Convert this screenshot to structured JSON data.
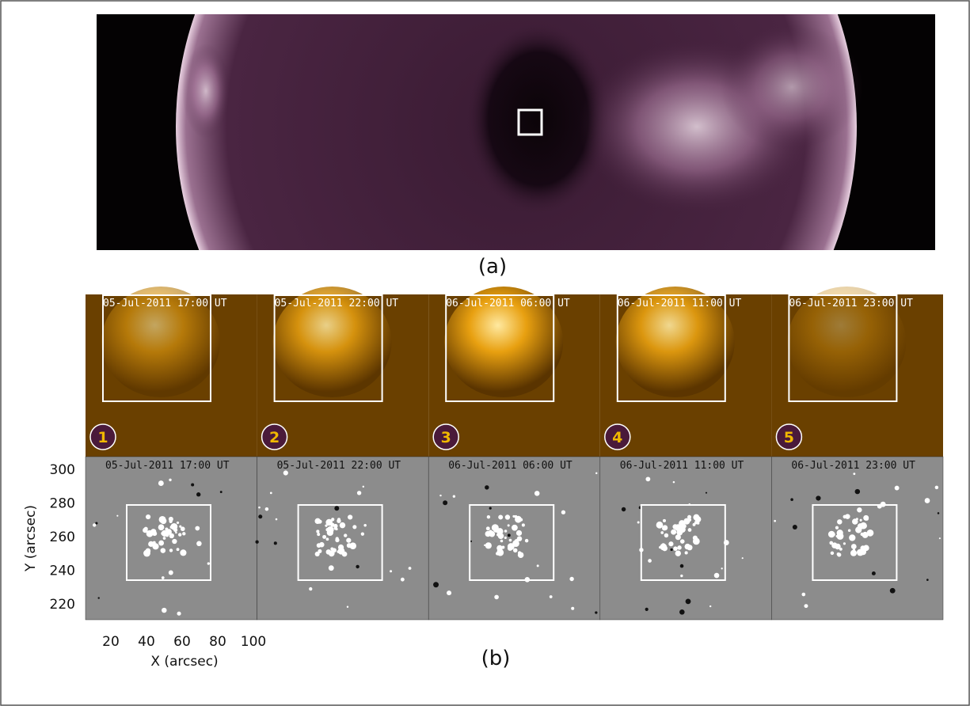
{
  "panel_a": {
    "label": "(a)"
  },
  "panel_b": {
    "label": "(b)",
    "euv_frames": [
      {
        "timestamp": "05-Jul-2011 17:00 UT",
        "number": "1"
      },
      {
        "timestamp": "05-Jul-2011 22:00 UT",
        "number": "2"
      },
      {
        "timestamp": "06-Jul-2011 06:00 UT",
        "number": "3"
      },
      {
        "timestamp": "06-Jul-2011 11:00 UT",
        "number": "4"
      },
      {
        "timestamp": "06-Jul-2011 23:00 UT",
        "number": "5"
      }
    ],
    "magnetogram_frames": [
      "05-Jul-2011 17:00 UT",
      "05-Jul-2011 22:00 UT",
      "06-Jul-2011 06:00 UT",
      "06-Jul-2011 11:00 UT",
      "06-Jul-2011 23:00 UT"
    ],
    "y_axis": {
      "label": "Y (arcsec)",
      "ticks": [
        "300",
        "280",
        "260",
        "240",
        "220"
      ]
    },
    "x_axis": {
      "label": "X (arcsec)",
      "ticks": [
        "20",
        "40",
        "60",
        "80",
        "100"
      ]
    }
  }
}
